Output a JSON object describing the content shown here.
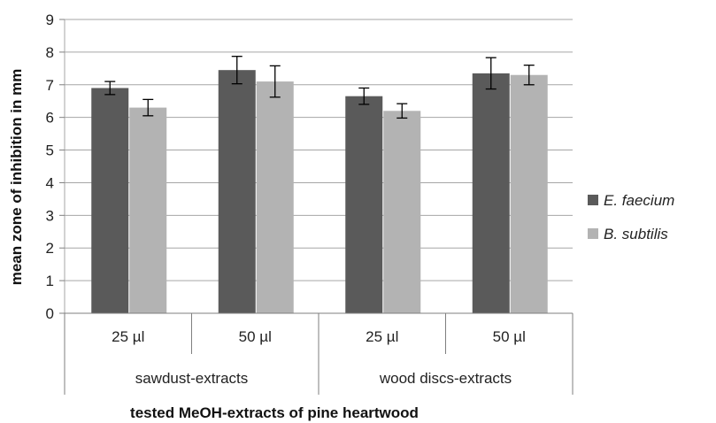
{
  "chart_data": {
    "type": "bar",
    "title": "",
    "xlabel": "tested MeOH-extracts  of pine heartwood",
    "ylabel": "mean zone of inhibition in mm",
    "ylim": [
      0,
      9
    ],
    "yticks": [
      "0",
      "1",
      "2",
      "3",
      "4",
      "5",
      "6",
      "7",
      "8",
      "9"
    ],
    "groups": [
      "sawdust-extracts",
      "wood discs-extracts"
    ],
    "categories": [
      "25 µl",
      "50 µl",
      "25 µl",
      "50 µl"
    ],
    "series": [
      {
        "name": "E. faecium",
        "color": "#5a5a5a",
        "values": [
          6.9,
          7.45,
          6.65,
          7.35
        ],
        "errors": [
          0.2,
          0.42,
          0.25,
          0.48
        ]
      },
      {
        "name": "B. subtilis",
        "color": "#b3b3b3",
        "values": [
          6.3,
          7.1,
          6.2,
          7.3
        ],
        "errors": [
          0.25,
          0.48,
          0.22,
          0.3
        ]
      }
    ],
    "grid": true,
    "legend": "right"
  }
}
